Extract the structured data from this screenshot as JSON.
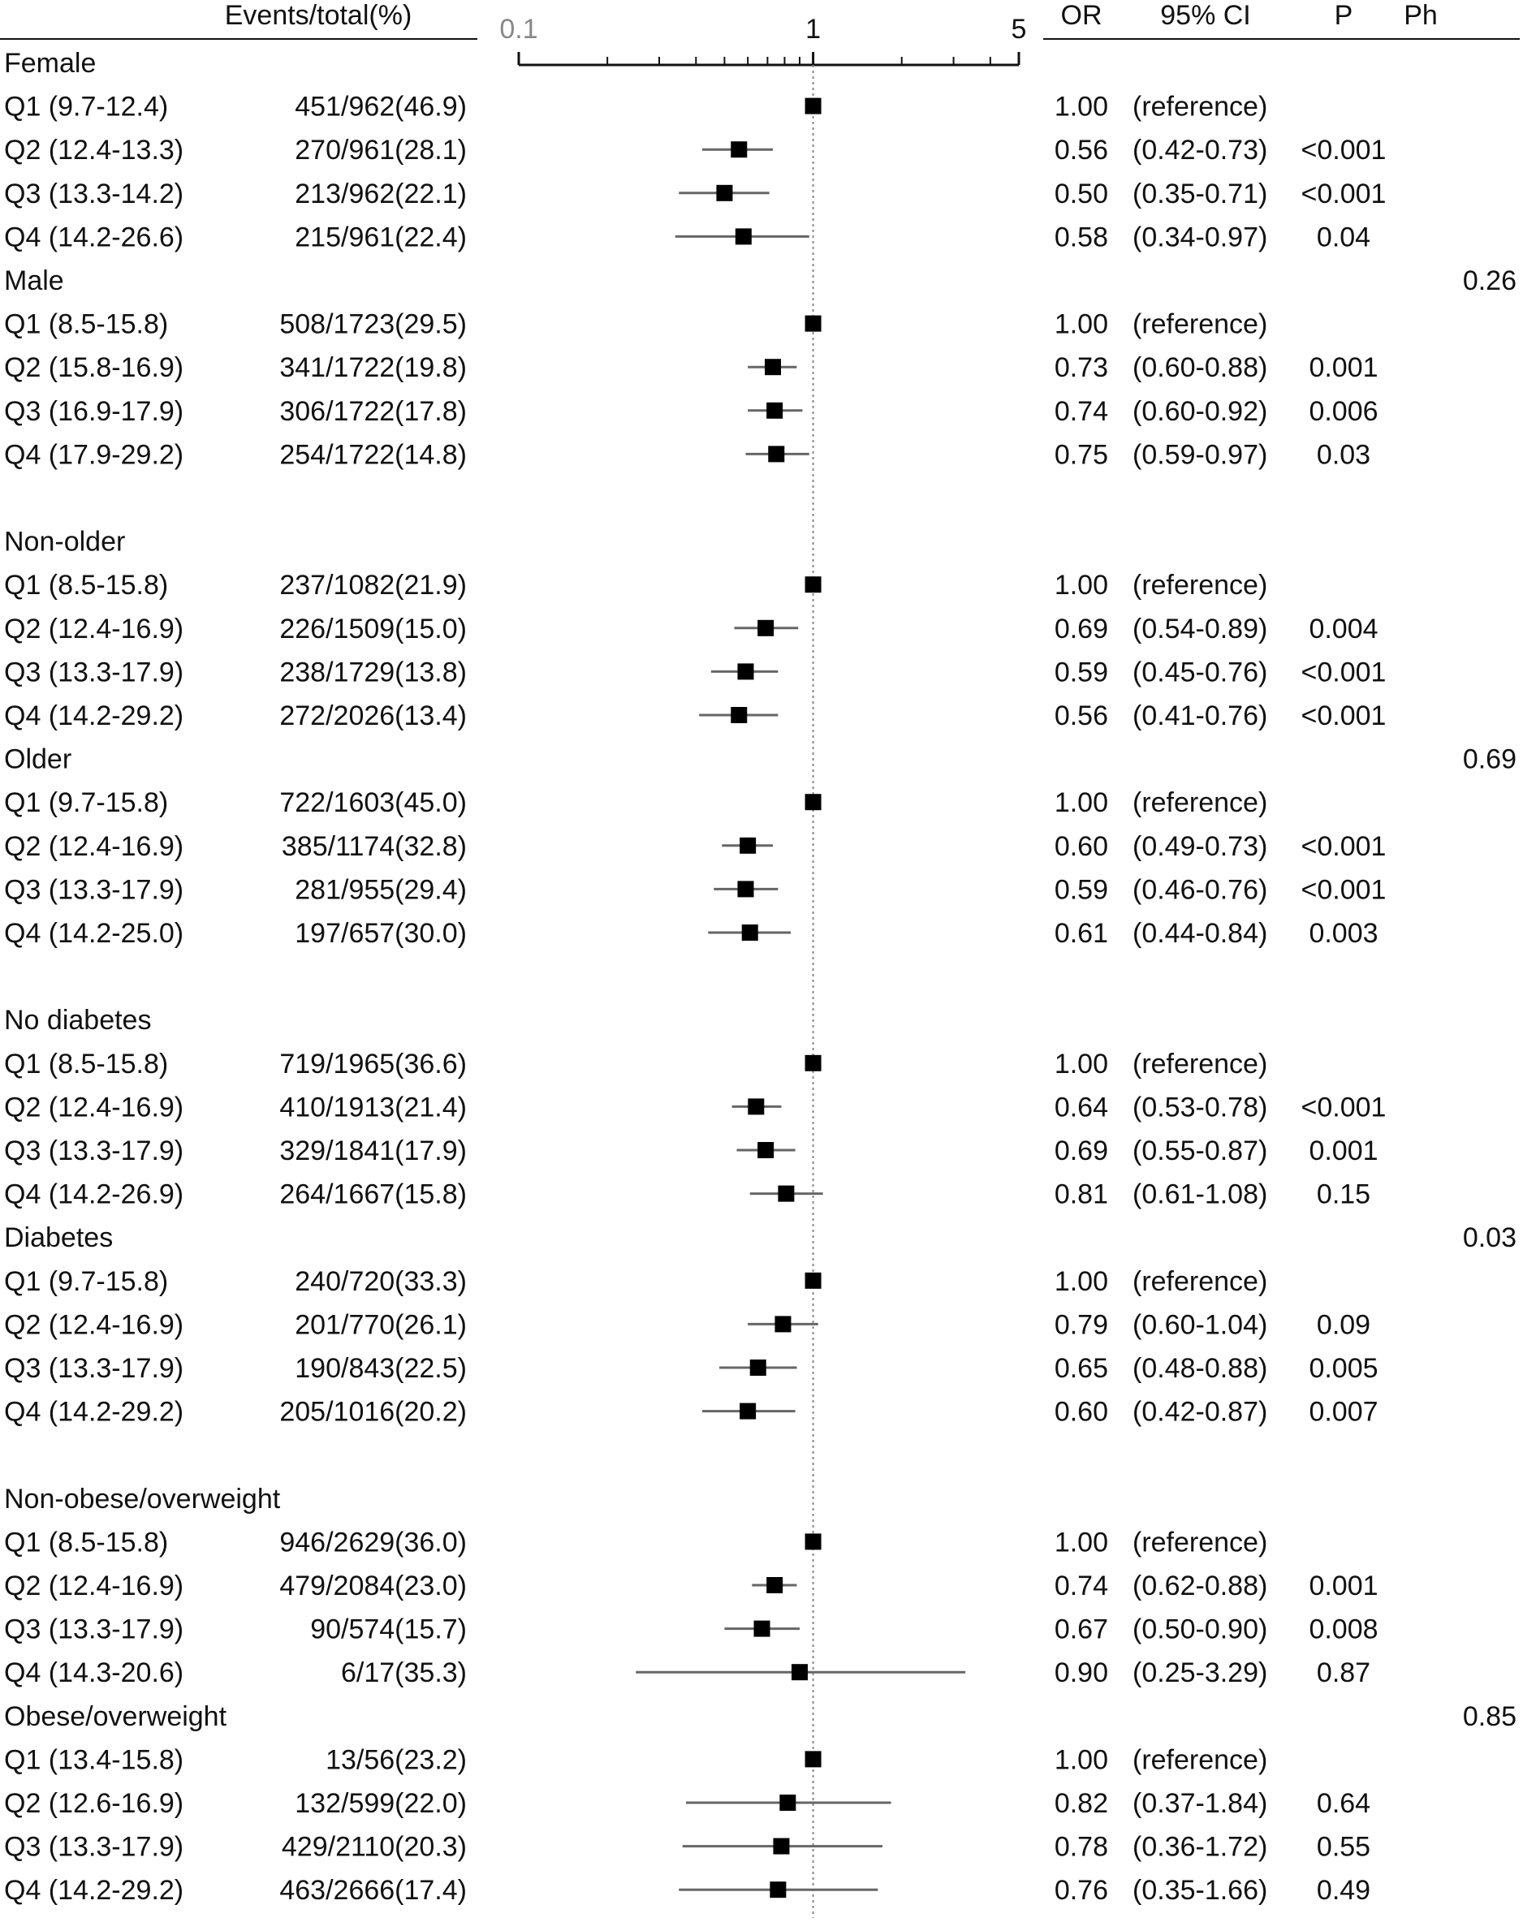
{
  "headers": {
    "events": "Events/total(%)",
    "or": "OR",
    "ci": "95% CI",
    "p": "P",
    "ph": "Ph"
  },
  "chart_data": {
    "type": "forest",
    "x_scale": "log",
    "xlim": [
      0.1,
      5
    ],
    "x_ticks": [
      {
        "value": 0.1,
        "label": "0.1"
      },
      {
        "value": 1,
        "label": "1"
      },
      {
        "value": 5,
        "label": "5"
      }
    ],
    "reference_line": 1,
    "rows": [
      {
        "kind": "group",
        "label": "Female",
        "ph": ""
      },
      {
        "kind": "data",
        "label": "Q1 (9.7-12.4)",
        "events": "451/962(46.9)",
        "or": 1.0,
        "lo": null,
        "hi": null,
        "or_text": "1.00",
        "ci_text": "(reference)",
        "p": ""
      },
      {
        "kind": "data",
        "label": "Q2 (12.4-13.3)",
        "events": "270/961(28.1)",
        "or": 0.56,
        "lo": 0.42,
        "hi": 0.73,
        "or_text": "0.56",
        "ci_text": "(0.42-0.73)",
        "p": "<0.001"
      },
      {
        "kind": "data",
        "label": "Q3 (13.3-14.2)",
        "events": "213/962(22.1)",
        "or": 0.5,
        "lo": 0.35,
        "hi": 0.71,
        "or_text": "0.50",
        "ci_text": "(0.35-0.71)",
        "p": "<0.001"
      },
      {
        "kind": "data",
        "label": "Q4 (14.2-26.6)",
        "events": "215/961(22.4)",
        "or": 0.58,
        "lo": 0.34,
        "hi": 0.97,
        "or_text": "0.58",
        "ci_text": "(0.34-0.97)",
        "p": "0.04"
      },
      {
        "kind": "group",
        "label": "Male",
        "ph": "0.26"
      },
      {
        "kind": "data",
        "label": "Q1 (8.5-15.8)",
        "events": "508/1723(29.5)",
        "or": 1.0,
        "lo": null,
        "hi": null,
        "or_text": "1.00",
        "ci_text": "(reference)",
        "p": ""
      },
      {
        "kind": "data",
        "label": "Q2 (15.8-16.9)",
        "events": "341/1722(19.8)",
        "or": 0.73,
        "lo": 0.6,
        "hi": 0.88,
        "or_text": "0.73",
        "ci_text": "(0.60-0.88)",
        "p": "0.001"
      },
      {
        "kind": "data",
        "label": "Q3 (16.9-17.9)",
        "events": "306/1722(17.8)",
        "or": 0.74,
        "lo": 0.6,
        "hi": 0.92,
        "or_text": "0.74",
        "ci_text": "(0.60-0.92)",
        "p": "0.006"
      },
      {
        "kind": "data",
        "label": "Q4 (17.9-29.2)",
        "events": "254/1722(14.8)",
        "or": 0.75,
        "lo": 0.59,
        "hi": 0.97,
        "or_text": "0.75",
        "ci_text": "(0.59-0.97)",
        "p": "0.03"
      },
      {
        "kind": "blank"
      },
      {
        "kind": "group",
        "label": "Non-older",
        "ph": ""
      },
      {
        "kind": "data",
        "label": "Q1 (8.5-15.8)",
        "events": "237/1082(21.9)",
        "or": 1.0,
        "lo": null,
        "hi": null,
        "or_text": "1.00",
        "ci_text": "(reference)",
        "p": ""
      },
      {
        "kind": "data",
        "label": "Q2 (12.4-16.9)",
        "events": "226/1509(15.0)",
        "or": 0.69,
        "lo": 0.54,
        "hi": 0.89,
        "or_text": "0.69",
        "ci_text": "(0.54-0.89)",
        "p": "0.004"
      },
      {
        "kind": "data",
        "label": "Q3 (13.3-17.9)",
        "events": "238/1729(13.8)",
        "or": 0.59,
        "lo": 0.45,
        "hi": 0.76,
        "or_text": "0.59",
        "ci_text": "(0.45-0.76)",
        "p": "<0.001"
      },
      {
        "kind": "data",
        "label": "Q4 (14.2-29.2)",
        "events": "272/2026(13.4)",
        "or": 0.56,
        "lo": 0.41,
        "hi": 0.76,
        "or_text": "0.56",
        "ci_text": "(0.41-0.76)",
        "p": "<0.001"
      },
      {
        "kind": "group",
        "label": "Older",
        "ph": "0.69"
      },
      {
        "kind": "data",
        "label": "Q1 (9.7-15.8)",
        "events": "722/1603(45.0)",
        "or": 1.0,
        "lo": null,
        "hi": null,
        "or_text": "1.00",
        "ci_text": "(reference)",
        "p": ""
      },
      {
        "kind": "data",
        "label": "Q2 (12.4-16.9)",
        "events": "385/1174(32.8)",
        "or": 0.6,
        "lo": 0.49,
        "hi": 0.73,
        "or_text": "0.60",
        "ci_text": "(0.49-0.73)",
        "p": "<0.001"
      },
      {
        "kind": "data",
        "label": "Q3 (13.3-17.9)",
        "events": "281/955(29.4)",
        "or": 0.59,
        "lo": 0.46,
        "hi": 0.76,
        "or_text": "0.59",
        "ci_text": "(0.46-0.76)",
        "p": "<0.001"
      },
      {
        "kind": "data",
        "label": "Q4 (14.2-25.0)",
        "events": "197/657(30.0)",
        "or": 0.61,
        "lo": 0.44,
        "hi": 0.84,
        "or_text": "0.61",
        "ci_text": "(0.44-0.84)",
        "p": "0.003"
      },
      {
        "kind": "blank"
      },
      {
        "kind": "group",
        "label": "No diabetes",
        "ph": ""
      },
      {
        "kind": "data",
        "label": "Q1 (8.5-15.8)",
        "events": "719/1965(36.6)",
        "or": 1.0,
        "lo": null,
        "hi": null,
        "or_text": "1.00",
        "ci_text": "(reference)",
        "p": ""
      },
      {
        "kind": "data",
        "label": "Q2 (12.4-16.9)",
        "events": "410/1913(21.4)",
        "or": 0.64,
        "lo": 0.53,
        "hi": 0.78,
        "or_text": "0.64",
        "ci_text": "(0.53-0.78)",
        "p": "<0.001"
      },
      {
        "kind": "data",
        "label": "Q3 (13.3-17.9)",
        "events": "329/1841(17.9)",
        "or": 0.69,
        "lo": 0.55,
        "hi": 0.87,
        "or_text": "0.69",
        "ci_text": "(0.55-0.87)",
        "p": "0.001"
      },
      {
        "kind": "data",
        "label": "Q4 (14.2-26.9)",
        "events": "264/1667(15.8)",
        "or": 0.81,
        "lo": 0.61,
        "hi": 1.08,
        "or_text": "0.81",
        "ci_text": "(0.61-1.08)",
        "p": "0.15"
      },
      {
        "kind": "group",
        "label": "Diabetes",
        "ph": "0.03"
      },
      {
        "kind": "data",
        "label": "Q1 (9.7-15.8)",
        "events": "240/720(33.3)",
        "or": 1.0,
        "lo": null,
        "hi": null,
        "or_text": "1.00",
        "ci_text": "(reference)",
        "p": ""
      },
      {
        "kind": "data",
        "label": "Q2 (12.4-16.9)",
        "events": "201/770(26.1)",
        "or": 0.79,
        "lo": 0.6,
        "hi": 1.04,
        "or_text": "0.79",
        "ci_text": "(0.60-1.04)",
        "p": "0.09"
      },
      {
        "kind": "data",
        "label": "Q3 (13.3-17.9)",
        "events": "190/843(22.5)",
        "or": 0.65,
        "lo": 0.48,
        "hi": 0.88,
        "or_text": "0.65",
        "ci_text": "(0.48-0.88)",
        "p": "0.005"
      },
      {
        "kind": "data",
        "label": "Q4 (14.2-29.2)",
        "events": "205/1016(20.2)",
        "or": 0.6,
        "lo": 0.42,
        "hi": 0.87,
        "or_text": "0.60",
        "ci_text": "(0.42-0.87)",
        "p": "0.007"
      },
      {
        "kind": "blank"
      },
      {
        "kind": "group",
        "label": "Non-obese/overweight",
        "ph": ""
      },
      {
        "kind": "data",
        "label": "Q1 (8.5-15.8)",
        "events": "946/2629(36.0)",
        "or": 1.0,
        "lo": null,
        "hi": null,
        "or_text": "1.00",
        "ci_text": "(reference)",
        "p": ""
      },
      {
        "kind": "data",
        "label": "Q2 (12.4-16.9)",
        "events": "479/2084(23.0)",
        "or": 0.74,
        "lo": 0.62,
        "hi": 0.88,
        "or_text": "0.74",
        "ci_text": "(0.62-0.88)",
        "p": "0.001"
      },
      {
        "kind": "data",
        "label": "Q3 (13.3-17.9)",
        "events": "90/574(15.7)",
        "or": 0.67,
        "lo": 0.5,
        "hi": 0.9,
        "or_text": "0.67",
        "ci_text": "(0.50-0.90)",
        "p": "0.008"
      },
      {
        "kind": "data",
        "label": "Q4 (14.3-20.6)",
        "events": "6/17(35.3)",
        "or": 0.9,
        "lo": 0.25,
        "hi": 3.29,
        "or_text": "0.90",
        "ci_text": "(0.25-3.29)",
        "p": "0.87"
      },
      {
        "kind": "group",
        "label": "Obese/overweight",
        "ph": "0.85"
      },
      {
        "kind": "data",
        "label": "Q1 (13.4-15.8)",
        "events": "13/56(23.2)",
        "or": 1.0,
        "lo": null,
        "hi": null,
        "or_text": "1.00",
        "ci_text": "(reference)",
        "p": ""
      },
      {
        "kind": "data",
        "label": "Q2 (12.6-16.9)",
        "events": "132/599(22.0)",
        "or": 0.82,
        "lo": 0.37,
        "hi": 1.84,
        "or_text": "0.82",
        "ci_text": "(0.37-1.84)",
        "p": "0.64"
      },
      {
        "kind": "data",
        "label": "Q3 (13.3-17.9)",
        "events": "429/2110(20.3)",
        "or": 0.78,
        "lo": 0.36,
        "hi": 1.72,
        "or_text": "0.78",
        "ci_text": "(0.36-1.72)",
        "p": "0.55"
      },
      {
        "kind": "data",
        "label": "Q4 (14.2-29.2)",
        "events": "463/2666(17.4)",
        "or": 0.76,
        "lo": 0.35,
        "hi": 1.66,
        "or_text": "0.76",
        "ci_text": "(0.35-1.66)",
        "p": "0.49"
      }
    ]
  }
}
